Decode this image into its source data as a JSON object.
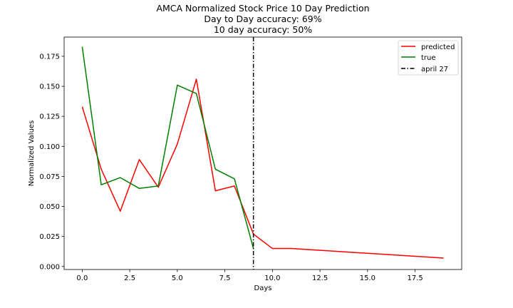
{
  "chart_data": {
    "type": "line",
    "title": [
      "AMCA Normalized Stock Price 10 Day Prediction",
      "Day to Day accuracy: 69%",
      "10 day accuracy: 50%"
    ],
    "xlabel": "Days",
    "ylabel": "Normalized Values",
    "xlim": [
      -0.95,
      19.95
    ],
    "ylim": [
      -0.0025,
      0.191
    ],
    "xticks": [
      0.0,
      2.5,
      5.0,
      7.5,
      10.0,
      12.5,
      15.0,
      17.5
    ],
    "xtick_labels": [
      "0.0",
      "2.5",
      "5.0",
      "7.5",
      "10.0",
      "12.5",
      "15.0",
      "17.5"
    ],
    "yticks": [
      0.0,
      0.025,
      0.05,
      0.075,
      0.1,
      0.125,
      0.15,
      0.175
    ],
    "ytick_labels": [
      "0.000",
      "0.025",
      "0.050",
      "0.075",
      "0.100",
      "0.125",
      "0.150",
      "0.175"
    ],
    "series": [
      {
        "name": "predicted",
        "color": "#ff0000",
        "style": "solid",
        "x": [
          0,
          1,
          2,
          3,
          4,
          5,
          6,
          7,
          8,
          9,
          10,
          11,
          12,
          13,
          14,
          15,
          16,
          17,
          18,
          19
        ],
        "values": [
          0.133,
          0.081,
          0.046,
          0.089,
          0.066,
          0.102,
          0.156,
          0.063,
          0.067,
          0.027,
          0.015,
          0.015,
          0.014,
          0.013,
          0.012,
          0.011,
          0.01,
          0.009,
          0.008,
          0.007
        ]
      },
      {
        "name": "true",
        "color": "#008000",
        "style": "solid",
        "x": [
          0,
          1,
          2,
          3,
          4,
          5,
          6,
          7,
          8,
          9
        ],
        "values": [
          0.183,
          0.068,
          0.074,
          0.065,
          0.067,
          0.151,
          0.144,
          0.081,
          0.073,
          0.015
        ]
      }
    ],
    "vline": {
      "name": "april 27",
      "x": 9,
      "color": "#000000",
      "style": "dashdot"
    },
    "legend_position": "top-right",
    "grid": false
  }
}
